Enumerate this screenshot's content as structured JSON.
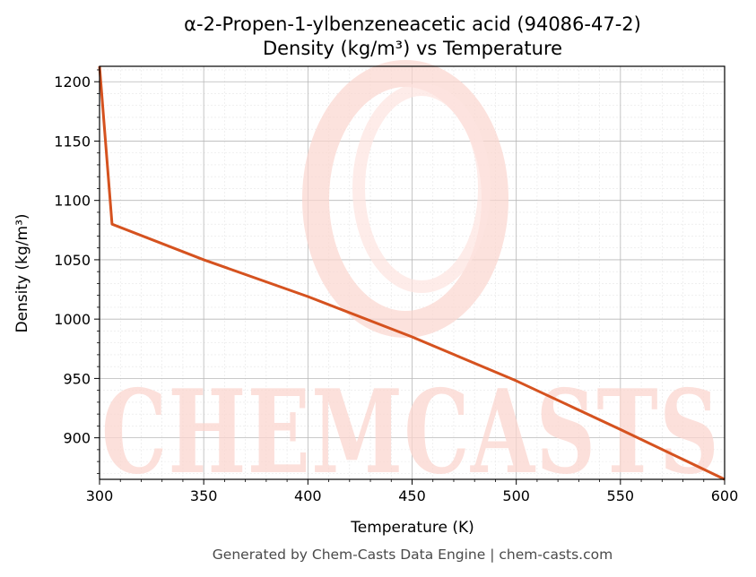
{
  "chart_data": {
    "type": "line",
    "title": "α-2-Propen-1-ylbenzeneacetic acid (94086-47-2)",
    "subtitle": "Density (kg/m³) vs Temperature",
    "xlabel": "Temperature (K)",
    "ylabel": "Density (kg/m³)",
    "xlim": [
      300,
      600
    ],
    "ylim": [
      865,
      1213
    ],
    "x_ticks": [
      300,
      350,
      400,
      450,
      500,
      550,
      600
    ],
    "y_ticks": [
      900,
      950,
      1000,
      1050,
      1100,
      1150,
      1200
    ],
    "grid": true,
    "series": [
      {
        "color": "#d5521f",
        "points": [
          {
            "x": 300,
            "y": 1213
          },
          {
            "x": 306,
            "y": 1080
          },
          {
            "x": 350,
            "y": 1050
          },
          {
            "x": 400,
            "y": 1019
          },
          {
            "x": 450,
            "y": 985
          },
          {
            "x": 500,
            "y": 948
          },
          {
            "x": 550,
            "y": 907
          },
          {
            "x": 600,
            "y": 865
          }
        ]
      }
    ]
  },
  "watermark": {
    "text": "CHEMCASTS",
    "color": "#fbd6cf"
  },
  "footer": "Generated by Chem-Casts Data Engine | chem-casts.com"
}
